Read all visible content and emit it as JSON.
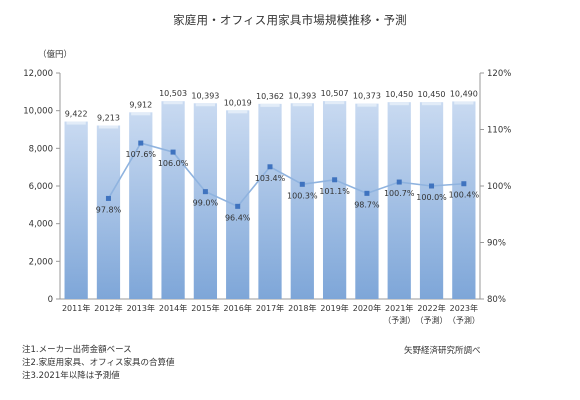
{
  "title": "家庭用・オフィス用家具市場規模推移・予測",
  "unit_label": "（億円）",
  "notes": [
    "注1.メーカー出荷金額ベース",
    "注2.家庭用家具、オフィス家具の合算値",
    "注3.2021年以降は予測値"
  ],
  "source": "矢野経済研究所調べ",
  "chart_data": {
    "type": "bar",
    "categories": [
      "2011年",
      "2012年",
      "2013年",
      "2014年",
      "2015年",
      "2016年",
      "2017年",
      "2018年",
      "2019年",
      "2020年",
      "2021年",
      "2022年",
      "2023年"
    ],
    "category_sublabels": [
      "",
      "",
      "",
      "",
      "",
      "",
      "",
      "",
      "",
      "",
      "（予測）",
      "（予測）",
      "（予測）"
    ],
    "series": [
      {
        "type": "bar",
        "axis": "left",
        "values": [
          9422,
          9213,
          9912,
          10503,
          10393,
          10019,
          10362,
          10393,
          10507,
          10373,
          10450,
          10450,
          10490
        ],
        "labels": [
          "9,422",
          "9,213",
          "9,912",
          "10,503",
          "10,393",
          "10,019",
          "10,362",
          "10,393",
          "10,507",
          "10,373",
          "10,450",
          "10,450",
          "10,490"
        ]
      },
      {
        "type": "line",
        "axis": "right",
        "values": [
          null,
          97.8,
          107.6,
          106.0,
          99.0,
          96.4,
          103.4,
          100.3,
          101.1,
          98.7,
          100.7,
          100.0,
          100.4
        ],
        "labels": [
          "",
          "97.8%",
          "107.6%",
          "106.0%",
          "99.0%",
          "96.4%",
          "103.4%",
          "100.3%",
          "101.1%",
          "98.7%",
          "100.7%",
          "100.0%",
          "100.4%"
        ]
      }
    ],
    "y_left": {
      "min": 0,
      "max": 12000,
      "ticks": [
        "0",
        "2,000",
        "4,000",
        "6,000",
        "8,000",
        "10,000",
        "12,000"
      ]
    },
    "y_right": {
      "min": 80,
      "max": 120,
      "ticks": [
        "80%",
        "90%",
        "100%",
        "110%",
        "120%"
      ]
    },
    "grid": false,
    "colors": {
      "bar_top": "#c9daf1",
      "bar_bottom": "#7ea6d8",
      "line": "#8fb3df",
      "marker": "#3f73bf",
      "axis": "#999999"
    }
  }
}
